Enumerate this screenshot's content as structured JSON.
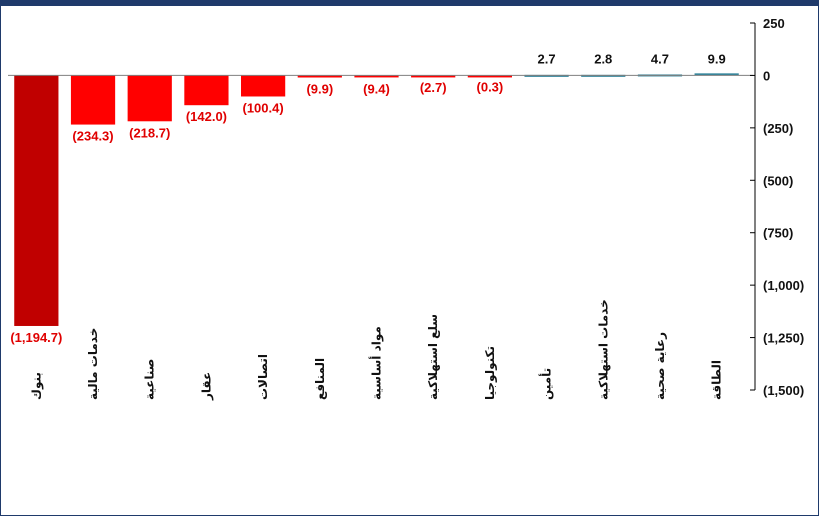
{
  "chart_data": {
    "type": "bar",
    "title": "",
    "xlabel": "",
    "ylabel": "",
    "ylim": [
      -1500,
      250
    ],
    "yticks": [
      250,
      0,
      -250,
      -500,
      -750,
      -1000,
      -1250,
      -1500
    ],
    "ytick_labels": [
      "250",
      "0",
      "(250)",
      "(500)",
      "(750)",
      "(1,000)",
      "(1,250)",
      "(1,500)"
    ],
    "categories": [
      "بنوك",
      "خدمات مالية",
      "صناعية",
      "عقار",
      "اتصالات",
      "المنافع",
      "مواد أساسية",
      "سلع استهلاكية",
      "تكنولوجيا",
      "تأمين",
      "خدمات استهلاكية",
      "رعاية صحية",
      "الطاقة"
    ],
    "values": [
      -1194.7,
      -234.3,
      -218.7,
      -142.0,
      -100.4,
      -9.9,
      -9.4,
      -2.7,
      -0.3,
      2.7,
      2.8,
      4.7,
      9.9
    ],
    "value_labels": [
      "(1,194.7)",
      "(234.3)",
      "(218.7)",
      "(142.0)",
      "(100.4)",
      "(9.9)",
      "(9.4)",
      "(2.7)",
      "(0.3)",
      "2.7",
      "2.8",
      "4.7",
      "9.9"
    ],
    "grid": false,
    "legend": "none",
    "colors": {
      "first_bar": "#c00000",
      "negative": "#ff0000",
      "positive": "#31849b",
      "negative_label": "#e00000",
      "positive_label": "#111111",
      "axis": "#000000"
    }
  }
}
